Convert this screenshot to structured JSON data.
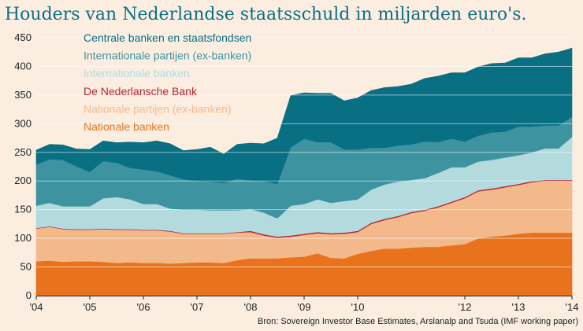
{
  "chart_data": {
    "type": "area",
    "stacked": true,
    "title": "Houders van Nederlandse staatsschuld in miljarden euro's.",
    "source": "Bron: Sovereign Investor Base Estimates, Arslanalp and Tsuda (IMF working paper)",
    "xlabel": "",
    "ylabel": "",
    "ylim": [
      0,
      450
    ],
    "yticks": [
      0,
      50,
      100,
      150,
      200,
      250,
      300,
      350,
      400,
      450
    ],
    "xlim": [
      2004,
      2014
    ],
    "xticks": [
      {
        "value": 2004,
        "label": "'04"
      },
      {
        "value": 2005,
        "label": "'05"
      },
      {
        "value": 2006,
        "label": "'06"
      },
      {
        "value": 2007,
        "label": "'07"
      },
      {
        "value": 2008,
        "label": "'08"
      },
      {
        "value": 2009,
        "label": "'09"
      },
      {
        "value": 2010,
        "label": "'10"
      },
      {
        "value": 2012,
        "label": "'12"
      },
      {
        "value": 2013,
        "label": "'13"
      },
      {
        "value": 2014,
        "label": "'14"
      }
    ],
    "grid": true,
    "legend_position": "top-left",
    "x": [
      2004.0,
      2004.25,
      2004.5,
      2004.75,
      2005.0,
      2005.25,
      2005.5,
      2005.75,
      2006.0,
      2006.25,
      2006.5,
      2006.75,
      2007.0,
      2007.25,
      2007.5,
      2007.75,
      2008.0,
      2008.25,
      2008.5,
      2008.75,
      2009.0,
      2009.25,
      2009.5,
      2009.75,
      2010.0,
      2010.25,
      2010.5,
      2010.75,
      2011.0,
      2011.25,
      2011.5,
      2011.75,
      2012.0,
      2012.25,
      2012.5,
      2012.75,
      2013.0,
      2013.25,
      2013.5,
      2013.75,
      2014.0
    ],
    "series": [
      {
        "name": "Nationale banken",
        "color": "#e9731c",
        "values": [
          60,
          61,
          59,
          60,
          60,
          59,
          57,
          58,
          57,
          57,
          56,
          57,
          58,
          58,
          57,
          62,
          65,
          65,
          65,
          67,
          68,
          74,
          66,
          65,
          73,
          78,
          82,
          82,
          84,
          85,
          85,
          88,
          90,
          100,
          103,
          105,
          108,
          110,
          110,
          110,
          110
        ]
      },
      {
        "name": "Nationale partijen (ex-banken)",
        "color": "#f3b98a",
        "values": [
          57,
          59,
          57,
          55,
          55,
          57,
          58,
          57,
          57,
          57,
          56,
          51,
          50,
          50,
          51,
          48,
          46,
          40,
          36,
          36,
          38,
          35,
          41,
          43,
          38,
          47,
          50,
          55,
          60,
          63,
          69,
          74,
          80,
          82,
          82,
          84,
          85,
          88,
          90,
          90,
          90
        ]
      },
      {
        "name": "De Nederlansche Bank",
        "color": "#b62531",
        "values": [
          1,
          1,
          1,
          1,
          1,
          1,
          1,
          1,
          1,
          1,
          1,
          1,
          1,
          1,
          1,
          1,
          2,
          2,
          2,
          2,
          2,
          2,
          2,
          2,
          2,
          2,
          2,
          2,
          2,
          2,
          2,
          2,
          2,
          2,
          2,
          2,
          2,
          2,
          2,
          2,
          2
        ]
      },
      {
        "name": "Internationale banken",
        "color": "#b3dadd",
        "values": [
          39,
          41,
          39,
          40,
          40,
          53,
          56,
          52,
          45,
          45,
          39,
          41,
          41,
          40,
          40,
          38,
          38,
          38,
          32,
          52,
          52,
          57,
          53,
          55,
          55,
          58,
          60,
          60,
          56,
          55,
          58,
          60,
          52,
          50,
          50,
          50,
          50,
          50,
          55,
          55,
          75
        ]
      },
      {
        "name": "Internationale partijen (ex-banken)",
        "color": "#3e93a0",
        "values": [
          72,
          76,
          81,
          70,
          60,
          65,
          60,
          55,
          60,
          57,
          58,
          53,
          50,
          50,
          48,
          55,
          50,
          55,
          60,
          102,
          114,
          100,
          106,
          90,
          87,
          73,
          64,
          63,
          62,
          64,
          54,
          50,
          45,
          45,
          48,
          45,
          50,
          45,
          40,
          40,
          35
        ]
      },
      {
        "name": "Centrale banken en staatsfondsen",
        "color": "#096f83",
        "values": [
          25,
          26,
          26,
          30,
          39,
          35,
          35,
          45,
          47,
          53,
          55,
          50,
          55,
          60,
          50,
          60,
          65,
          65,
          80,
          90,
          80,
          85,
          85,
          85,
          90,
          100,
          105,
          103,
          105,
          110,
          115,
          115,
          120,
          120,
          120,
          120,
          120,
          120,
          125,
          128,
          120
        ]
      }
    ]
  }
}
